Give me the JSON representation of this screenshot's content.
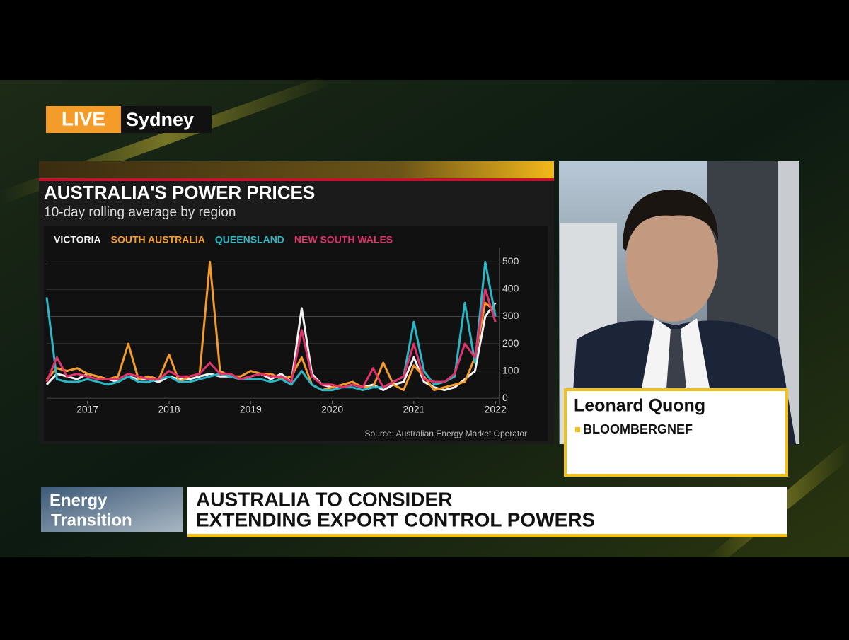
{
  "live": {
    "badge": "LIVE",
    "location": "Sydney"
  },
  "guest": {
    "name": "Leonard Quong",
    "affiliation": "BLOOMBERGNEF"
  },
  "ticker": {
    "section": [
      "Energy",
      "Transition"
    ],
    "headline": [
      "AUSTRALIA TO CONSIDER",
      "EXTENDING EXPORT CONTROL POWERS"
    ]
  },
  "chart_data": {
    "type": "line",
    "title": "AUSTRALIA'S POWER PRICES",
    "subtitle": "10-day rolling average by region",
    "source": "Source: Australian Energy Market Operator",
    "x": [
      2016.5,
      2016.625,
      2016.75,
      2016.875,
      2017,
      2017.125,
      2017.25,
      2017.375,
      2017.5,
      2017.625,
      2017.75,
      2017.875,
      2018,
      2018.125,
      2018.25,
      2018.375,
      2018.5,
      2018.625,
      2018.75,
      2018.875,
      2019,
      2019.125,
      2019.25,
      2019.375,
      2019.5,
      2019.625,
      2019.75,
      2019.875,
      2020,
      2020.125,
      2020.25,
      2020.375,
      2020.5,
      2020.625,
      2020.75,
      2020.875,
      2021,
      2021.125,
      2021.25,
      2021.375,
      2021.5,
      2021.625,
      2021.75,
      2021.875,
      2022
    ],
    "xlim": [
      2016.5,
      2022.05
    ],
    "xticks": [
      2017,
      2018,
      2019,
      2020,
      2021,
      2022
    ],
    "ylim": [
      -10,
      540
    ],
    "yticks": [
      0,
      100,
      200,
      300,
      400,
      500
    ],
    "grid": true,
    "series": [
      {
        "name": "VICTORIA",
        "color": "#f2f2f2",
        "values": [
          50,
          90,
          80,
          70,
          90,
          80,
          70,
          60,
          80,
          70,
          70,
          60,
          80,
          70,
          70,
          80,
          90,
          80,
          80,
          70,
          80,
          90,
          70,
          90,
          60,
          330,
          90,
          50,
          40,
          40,
          50,
          40,
          50,
          30,
          50,
          60,
          150,
          60,
          40,
          30,
          40,
          70,
          100,
          300,
          350
        ]
      },
      {
        "name": "SOUTH AUSTRALIA",
        "color": "#f39c2a",
        "values": [
          70,
          110,
          100,
          110,
          90,
          80,
          70,
          80,
          200,
          70,
          80,
          70,
          160,
          60,
          80,
          90,
          500,
          100,
          80,
          80,
          100,
          90,
          90,
          70,
          80,
          150,
          50,
          30,
          40,
          50,
          60,
          40,
          40,
          130,
          50,
          30,
          120,
          80,
          30,
          40,
          50,
          60,
          150,
          350,
          320
        ]
      },
      {
        "name": "QUEENSLAND",
        "color": "#2bb8c6",
        "values": [
          370,
          70,
          60,
          60,
          70,
          60,
          50,
          60,
          80,
          60,
          60,
          70,
          80,
          60,
          60,
          70,
          80,
          90,
          80,
          70,
          70,
          70,
          60,
          70,
          50,
          100,
          50,
          30,
          30,
          40,
          40,
          30,
          40,
          40,
          60,
          80,
          280,
          100,
          50,
          60,
          80,
          350,
          130,
          500,
          300
        ]
      },
      {
        "name": "NEW SOUTH WALES",
        "color": "#e0336b",
        "values": [
          60,
          150,
          80,
          90,
          80,
          70,
          70,
          70,
          90,
          80,
          70,
          70,
          100,
          80,
          80,
          90,
          130,
          90,
          90,
          70,
          80,
          90,
          80,
          80,
          60,
          250,
          80,
          50,
          50,
          40,
          50,
          40,
          110,
          40,
          60,
          80,
          200,
          70,
          60,
          60,
          90,
          200,
          150,
          400,
          280
        ]
      }
    ]
  }
}
